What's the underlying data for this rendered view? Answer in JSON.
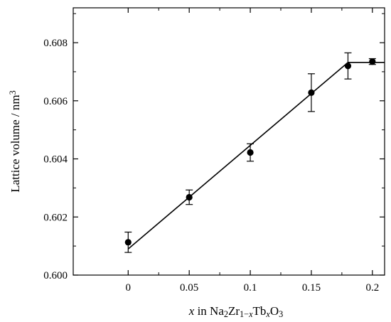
{
  "chart_data": {
    "type": "scatter",
    "title": "",
    "xlabel": {
      "parts": [
        {
          "text": "x",
          "style": "italic"
        },
        {
          "text": " in Na"
        },
        {
          "text": "2",
          "shift": "sub"
        },
        {
          "text": "Zr"
        },
        {
          "text": "1−",
          "shift": "sub"
        },
        {
          "text": "x",
          "shift": "sub",
          "style": "italic"
        },
        {
          "text": "Tb"
        },
        {
          "text": "x",
          "shift": "sub",
          "style": "italic"
        },
        {
          "text": "O"
        },
        {
          "text": "3",
          "shift": "sub"
        }
      ]
    },
    "ylabel": {
      "parts": [
        {
          "text": "Lattice volume / nm"
        },
        {
          "text": "3",
          "shift": "super"
        }
      ]
    },
    "xlim": [
      -0.045,
      0.21
    ],
    "ylim": [
      0.6,
      0.6092
    ],
    "xticks": [
      0,
      0.05,
      0.1,
      0.15,
      0.2
    ],
    "xtick_labels": [
      "0",
      "0.05",
      "0.1",
      "0.15",
      "0.2"
    ],
    "yticks": [
      0.6,
      0.602,
      0.604,
      0.606,
      0.608
    ],
    "ytick_labels": [
      "0.600",
      "0.602",
      "0.604",
      "0.606",
      "0.608"
    ],
    "grid": false,
    "legend": "none",
    "series": [
      {
        "marker": "filled-circle",
        "color": "#000000",
        "points": [
          {
            "x": 0,
            "y": 0.60113,
            "err": 0.00035
          },
          {
            "x": 0.05,
            "y": 0.60268,
            "err": 0.00025
          },
          {
            "x": 0.1,
            "y": 0.60422,
            "err": 0.0003
          },
          {
            "x": 0.15,
            "y": 0.60628,
            "err": 0.00065
          },
          {
            "x": 0.18,
            "y": 0.6072,
            "err": 0.00045
          },
          {
            "x": 0.2,
            "y": 0.60735,
            "err": 0.0001
          }
        ]
      }
    ],
    "fit_lines": [
      {
        "x": [
          0,
          0.18
        ],
        "y": [
          0.6009,
          0.60732
        ]
      },
      {
        "x": [
          0.18,
          0.21
        ],
        "y": [
          0.60732,
          0.60732
        ]
      }
    ]
  }
}
